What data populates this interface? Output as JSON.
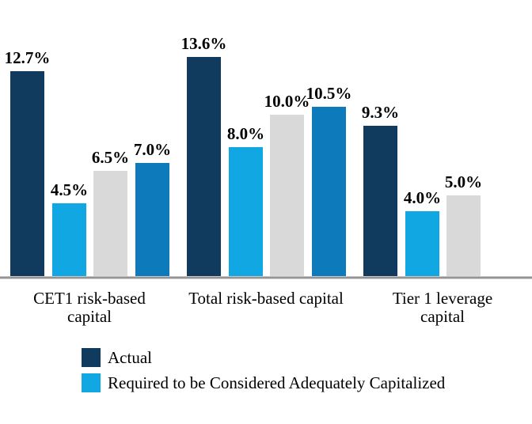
{
  "chart_data": {
    "type": "bar",
    "title": "",
    "xlabel": "",
    "ylabel": "",
    "value_suffix": "%",
    "ylim": [
      0,
      15
    ],
    "grid": false,
    "legend_position": "bottom-left",
    "axis_line_color": "#A2A2A2",
    "data_label_color": "#000000",
    "categories": [
      {
        "lines": [
          "CET1 risk-based",
          "capital"
        ]
      },
      {
        "lines": [
          "Total risk-based capital"
        ]
      },
      {
        "lines": [
          "Tier 1 leverage",
          "capital"
        ]
      }
    ],
    "series": [
      {
        "name": "Actual",
        "color": "#113B5E",
        "in_legend": true,
        "values": [
          12.7,
          13.6,
          9.3
        ]
      },
      {
        "name": "Required to be Considered Adequately Capitalized",
        "color": "#10A7E2",
        "in_legend": true,
        "values": [
          4.5,
          8.0,
          4.0
        ]
      },
      {
        "name": "",
        "color": "#D9D9D9",
        "in_legend": false,
        "values": [
          6.5,
          10.0,
          5.0
        ]
      },
      {
        "name": "",
        "color": "#0D7ABC",
        "in_legend": false,
        "values": [
          7.0,
          10.5,
          null
        ]
      }
    ],
    "data_labels": {
      "series_0": [
        "12.7%",
        "13.6%",
        "9.3%"
      ],
      "series_1": [
        "4.5%",
        "8.0%",
        "4.0%"
      ],
      "series_2": [
        "6.5%",
        "10.0%",
        "5.0%"
      ],
      "series_3": [
        "7.0%",
        "10.5%",
        null
      ]
    },
    "legend": [
      {
        "label": "Actual",
        "color": "#113B5E"
      },
      {
        "label": "Required to be Considered Adequately Capitalized",
        "color": "#10A7E2"
      }
    ]
  }
}
